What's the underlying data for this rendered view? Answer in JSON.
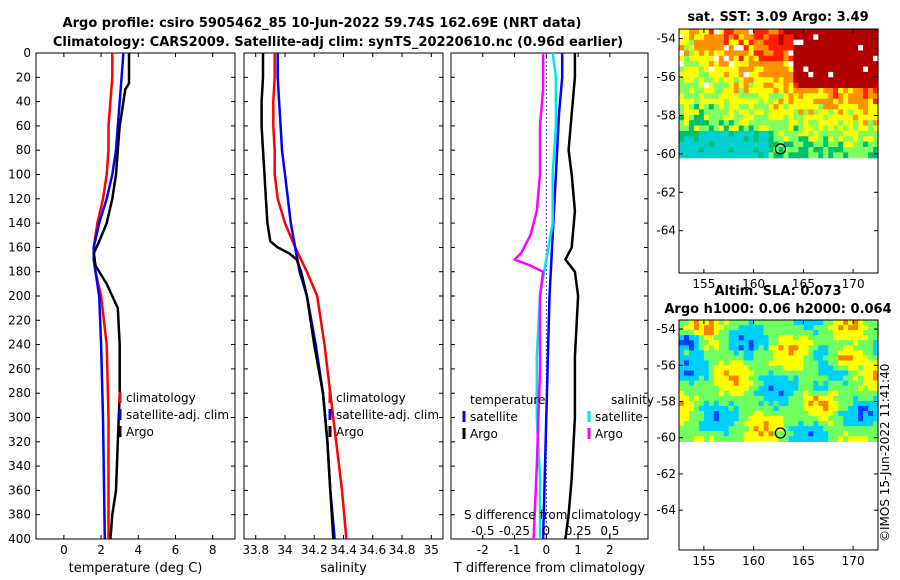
{
  "title_line1": "Argo profile: csiro 5905462_85 10-Jun-2022 59.74S 162.69E (NRT data)",
  "title_line2": "Climatology: CARS2009. Satellite-adj clim: synTS_20220610.nc (0.96d earlier)",
  "watermark": "©IMOS 15-Jun-2022 11:41:40",
  "colors": {
    "climatology": "#ff0000",
    "satellite": "#0000ff",
    "argo": "#000000",
    "argo_salinity_diff": "#ff00ff",
    "satellite_salinity_diff": "#00e5e5",
    "frame": "#000000",
    "ssh_missing": "#ffffff"
  },
  "chart_data": [
    {
      "id": "temperature",
      "type": "line",
      "xlabel": "temperature (deg C)",
      "ylabel": "",
      "xlim": [
        -1.5,
        9.2
      ],
      "ylim": [
        400,
        0
      ],
      "xticks": [
        0,
        2,
        4,
        6,
        8
      ],
      "xtick_labels": [
        "0",
        "2",
        "4",
        "6",
        "8"
      ],
      "yticks": [
        0,
        20,
        40,
        60,
        80,
        100,
        120,
        140,
        160,
        180,
        200,
        220,
        240,
        260,
        280,
        300,
        320,
        340,
        360,
        380,
        400
      ],
      "ytick_labels": [
        "0",
        "20",
        "40",
        "60",
        "80",
        "100",
        "120",
        "140",
        "160",
        "180",
        "200",
        "220",
        "240",
        "260",
        "280",
        "300",
        "320",
        "340",
        "360",
        "380",
        "400"
      ],
      "legend": {
        "position": "center-right",
        "entries": [
          "climatology",
          "satellite-adj. clim",
          "Argo"
        ]
      },
      "series": [
        {
          "name": "climatology",
          "color": "red",
          "points": [
            [
              2.6,
              0
            ],
            [
              2.6,
              20
            ],
            [
              2.5,
              40
            ],
            [
              2.4,
              60
            ],
            [
              2.4,
              80
            ],
            [
              2.3,
              100
            ],
            [
              2.1,
              120
            ],
            [
              1.8,
              140
            ],
            [
              1.6,
              160
            ],
            [
              1.7,
              180
            ],
            [
              2.0,
              200
            ],
            [
              2.3,
              240
            ],
            [
              2.4,
              300
            ],
            [
              2.4,
              400
            ]
          ]
        },
        {
          "name": "satellite-adj. clim",
          "color": "blue",
          "points": [
            [
              3.2,
              0
            ],
            [
              3.1,
              20
            ],
            [
              3.0,
              40
            ],
            [
              2.9,
              60
            ],
            [
              2.8,
              80
            ],
            [
              2.6,
              100
            ],
            [
              2.3,
              120
            ],
            [
              1.9,
              140
            ],
            [
              1.6,
              160
            ],
            [
              1.6,
              170
            ],
            [
              1.7,
              180
            ],
            [
              1.9,
              200
            ],
            [
              2.0,
              240
            ],
            [
              2.1,
              300
            ],
            [
              2.2,
              400
            ]
          ]
        },
        {
          "name": "Argo",
          "color": "black",
          "points": [
            [
              3.5,
              0
            ],
            [
              3.5,
              15
            ],
            [
              3.5,
              25
            ],
            [
              3.3,
              30
            ],
            [
              3.2,
              40
            ],
            [
              3.1,
              50
            ],
            [
              3.0,
              60
            ],
            [
              2.9,
              80
            ],
            [
              2.8,
              100
            ],
            [
              2.6,
              120
            ],
            [
              2.3,
              140
            ],
            [
              1.9,
              155
            ],
            [
              1.6,
              165
            ],
            [
              1.7,
              175
            ],
            [
              2.3,
              190
            ],
            [
              2.9,
              210
            ],
            [
              3.0,
              240
            ],
            [
              3.0,
              280
            ],
            [
              2.9,
              320
            ],
            [
              2.8,
              360
            ],
            [
              2.6,
              380
            ],
            [
              2.5,
              400
            ]
          ]
        }
      ]
    },
    {
      "id": "salinity",
      "type": "line",
      "xlabel": "salinity",
      "ylabel": "",
      "xlim": [
        33.72,
        35.08
      ],
      "ylim": [
        400,
        0
      ],
      "xticks": [
        33.8,
        34,
        34.2,
        34.4,
        34.6,
        34.8,
        35
      ],
      "xtick_labels": [
        "33.8",
        "34",
        "34.2",
        "34.4",
        "34.6",
        "34.8",
        "35"
      ],
      "legend": {
        "position": "center-right",
        "entries": [
          "climatology",
          "satellite-adj. clim",
          "Argo"
        ]
      },
      "series": [
        {
          "name": "climatology",
          "color": "red",
          "points": [
            [
              33.93,
              0
            ],
            [
              33.93,
              20
            ],
            [
              33.92,
              40
            ],
            [
              33.92,
              60
            ],
            [
              33.93,
              80
            ],
            [
              33.93,
              100
            ],
            [
              33.95,
              120
            ],
            [
              34.0,
              140
            ],
            [
              34.07,
              160
            ],
            [
              34.15,
              180
            ],
            [
              34.22,
              200
            ],
            [
              34.27,
              240
            ],
            [
              34.31,
              280
            ],
            [
              34.35,
              320
            ],
            [
              34.39,
              360
            ],
            [
              34.42,
              400
            ]
          ]
        },
        {
          "name": "satellite-adj. clim",
          "color": "blue",
          "points": [
            [
              33.95,
              0
            ],
            [
              33.95,
              20
            ],
            [
              33.96,
              40
            ],
            [
              33.97,
              60
            ],
            [
              33.98,
              80
            ],
            [
              34.0,
              100
            ],
            [
              34.02,
              120
            ],
            [
              34.04,
              140
            ],
            [
              34.07,
              160
            ],
            [
              34.1,
              180
            ],
            [
              34.15,
              200
            ],
            [
              34.21,
              240
            ],
            [
              34.26,
              280
            ],
            [
              34.29,
              320
            ],
            [
              34.31,
              360
            ],
            [
              34.34,
              400
            ]
          ]
        },
        {
          "name": "Argo",
          "color": "black",
          "points": [
            [
              33.85,
              0
            ],
            [
              33.85,
              20
            ],
            [
              33.84,
              40
            ],
            [
              33.84,
              60
            ],
            [
              33.85,
              80
            ],
            [
              33.86,
              100
            ],
            [
              33.87,
              120
            ],
            [
              33.88,
              140
            ],
            [
              33.9,
              155
            ],
            [
              33.95,
              160
            ],
            [
              34.03,
              165
            ],
            [
              34.08,
              170
            ],
            [
              34.11,
              180
            ],
            [
              34.15,
              200
            ],
            [
              34.2,
              240
            ],
            [
              34.26,
              280
            ],
            [
              34.29,
              320
            ],
            [
              34.31,
              360
            ],
            [
              34.33,
              400
            ]
          ]
        }
      ]
    },
    {
      "id": "difference",
      "type": "line",
      "xlabel": "T difference from climatology",
      "top_axis_label": "S difference from climatology",
      "xlim": [
        -3,
        3.2
      ],
      "ylim": [
        400,
        0
      ],
      "xticks": [
        -2,
        -1,
        0,
        1,
        2
      ],
      "xtick_labels": [
        "-2",
        "-1",
        "0",
        "1",
        "2"
      ],
      "s_xticks": [
        -0.5,
        -0.25,
        0,
        0.25,
        0.5
      ],
      "s_xtick_labels": [
        "-0.5",
        "-0.25",
        "0",
        "0.25",
        "0.5"
      ],
      "s_scale_factor": 4,
      "zero_line": 0,
      "legend": {
        "position": "center",
        "temperature_header": "temperature",
        "salinity_header": "salinity",
        "temperature_entries": [
          "satellite",
          "Argo"
        ],
        "salinity_entries": [
          "satellite",
          "Argo"
        ]
      },
      "series": [
        {
          "name": "T satellite",
          "color": "blue",
          "points": [
            [
              0.5,
              0
            ],
            [
              0.5,
              20
            ],
            [
              0.4,
              50
            ],
            [
              0.3,
              100
            ],
            [
              0.2,
              150
            ],
            [
              0.1,
              200
            ],
            [
              0.0,
              300
            ],
            [
              -0.1,
              400
            ]
          ]
        },
        {
          "name": "T Argo",
          "color": "black",
          "points": [
            [
              0.9,
              0
            ],
            [
              0.9,
              20
            ],
            [
              0.8,
              50
            ],
            [
              0.7,
              80
            ],
            [
              0.8,
              100
            ],
            [
              0.9,
              130
            ],
            [
              0.8,
              160
            ],
            [
              0.6,
              170
            ],
            [
              0.9,
              180
            ],
            [
              1.0,
              200
            ],
            [
              0.9,
              250
            ],
            [
              0.9,
              300
            ],
            [
              0.8,
              350
            ],
            [
              0.7,
              380
            ],
            [
              0.6,
              400
            ]
          ]
        },
        {
          "name": "S satellite",
          "color": "cyan",
          "points": [
            [
              0.2,
              0
            ],
            [
              0.3,
              20
            ],
            [
              0.3,
              60
            ],
            [
              0.2,
              100
            ],
            [
              0.2,
              140
            ],
            [
              0.0,
              170
            ],
            [
              -0.2,
              200
            ],
            [
              -0.3,
              250
            ],
            [
              -0.3,
              300
            ],
            [
              -0.2,
              350
            ],
            [
              -0.2,
              400
            ]
          ]
        },
        {
          "name": "S Argo",
          "color": "magenta",
          "points": [
            [
              -0.1,
              0
            ],
            [
              -0.1,
              30
            ],
            [
              -0.2,
              60
            ],
            [
              -0.2,
              100
            ],
            [
              -0.3,
              130
            ],
            [
              -0.5,
              150
            ],
            [
              -0.8,
              165
            ],
            [
              -1.0,
              170
            ],
            [
              -0.5,
              175
            ],
            [
              -0.1,
              180
            ],
            [
              -0.2,
              200
            ],
            [
              -0.2,
              260
            ],
            [
              -0.3,
              340
            ],
            [
              -0.4,
              400
            ]
          ]
        }
      ]
    },
    {
      "id": "sst_map",
      "type": "heatmap",
      "title": "sat. SST: 3.09 Argo: 3.49",
      "xlim": [
        152.5,
        172.5
      ],
      "ylim": [
        -66.2,
        -53.5
      ],
      "xticks": [
        155,
        160,
        165,
        170
      ],
      "xtick_labels": [
        "155",
        "160",
        "165",
        "170"
      ],
      "yticks": [
        -54,
        -56,
        -58,
        -60,
        -62,
        -64
      ],
      "ytick_labels": [
        "-54",
        "-56",
        "-58",
        "-60",
        "-62",
        "-64"
      ],
      "data_lat_range": [
        -60.2,
        -53.5
      ],
      "marker": {
        "lon": 162.69,
        "lat": -59.74
      },
      "colors": [
        "#00d0d0",
        "#00c070",
        "#80ff60",
        "#ffff00",
        "#ff9000",
        "#ff2000",
        "#b00000"
      ]
    },
    {
      "id": "sla_map",
      "type": "heatmap",
      "title": "Altim. SLA: 0.073",
      "subtitle": "Argo h1000: 0.06 h2000: 0.064",
      "xlim": [
        152.5,
        172.5
      ],
      "ylim": [
        -66.2,
        -53.5
      ],
      "xticks": [
        155,
        160,
        165,
        170
      ],
      "xtick_labels": [
        "155",
        "160",
        "165",
        "170"
      ],
      "yticks": [
        -54,
        -56,
        -58,
        -60,
        -62,
        -64
      ],
      "ytick_labels": [
        "-54",
        "-56",
        "-58",
        "-60",
        "-62",
        "-64"
      ],
      "data_lat_range": [
        -60.2,
        -53.5
      ],
      "marker": {
        "lon": 162.69,
        "lat": -59.74
      },
      "colors": [
        "#000070",
        "#0040ff",
        "#00d0ff",
        "#70ff60",
        "#ffff00",
        "#ff8000",
        "#c00000"
      ]
    }
  ]
}
